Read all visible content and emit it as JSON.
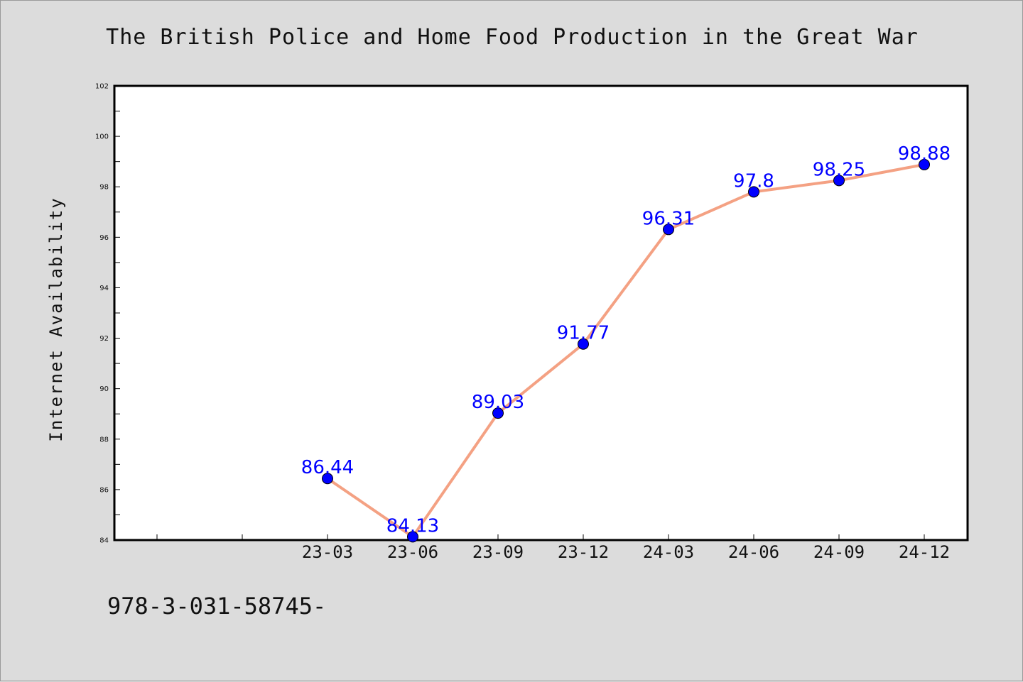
{
  "title": "The British Police and Home Food Production in the Great War",
  "footer_text": "978-3-031-58745-",
  "colors": {
    "background": "#dcdcdc",
    "plot_background": "#ffffff",
    "line": "#f4a183",
    "marker": "#0000ff",
    "label": "#0000ff",
    "axis": "#000000"
  },
  "chart_data": {
    "type": "line",
    "title": "The British Police and Home Food Production in the Great War",
    "xlabel": "",
    "ylabel": "Internet Availability",
    "categories": [
      "23-03",
      "23-06",
      "23-09",
      "23-12",
      "24-03",
      "24-06",
      "24-09",
      "24-12"
    ],
    "values": [
      86.44,
      84.13,
      89.03,
      91.77,
      96.31,
      97.8,
      98.25,
      98.88
    ],
    "data_labels": [
      "86.44",
      "84.13",
      "89.03",
      "91.77",
      "96.31",
      "97.8",
      "98.25",
      "98.88"
    ],
    "ylim": [
      84,
      102
    ],
    "yticks": [
      "84",
      "86",
      "88",
      "90",
      "92",
      "94",
      "96",
      "98",
      "100",
      "102"
    ],
    "grid": false,
    "legend": false
  }
}
